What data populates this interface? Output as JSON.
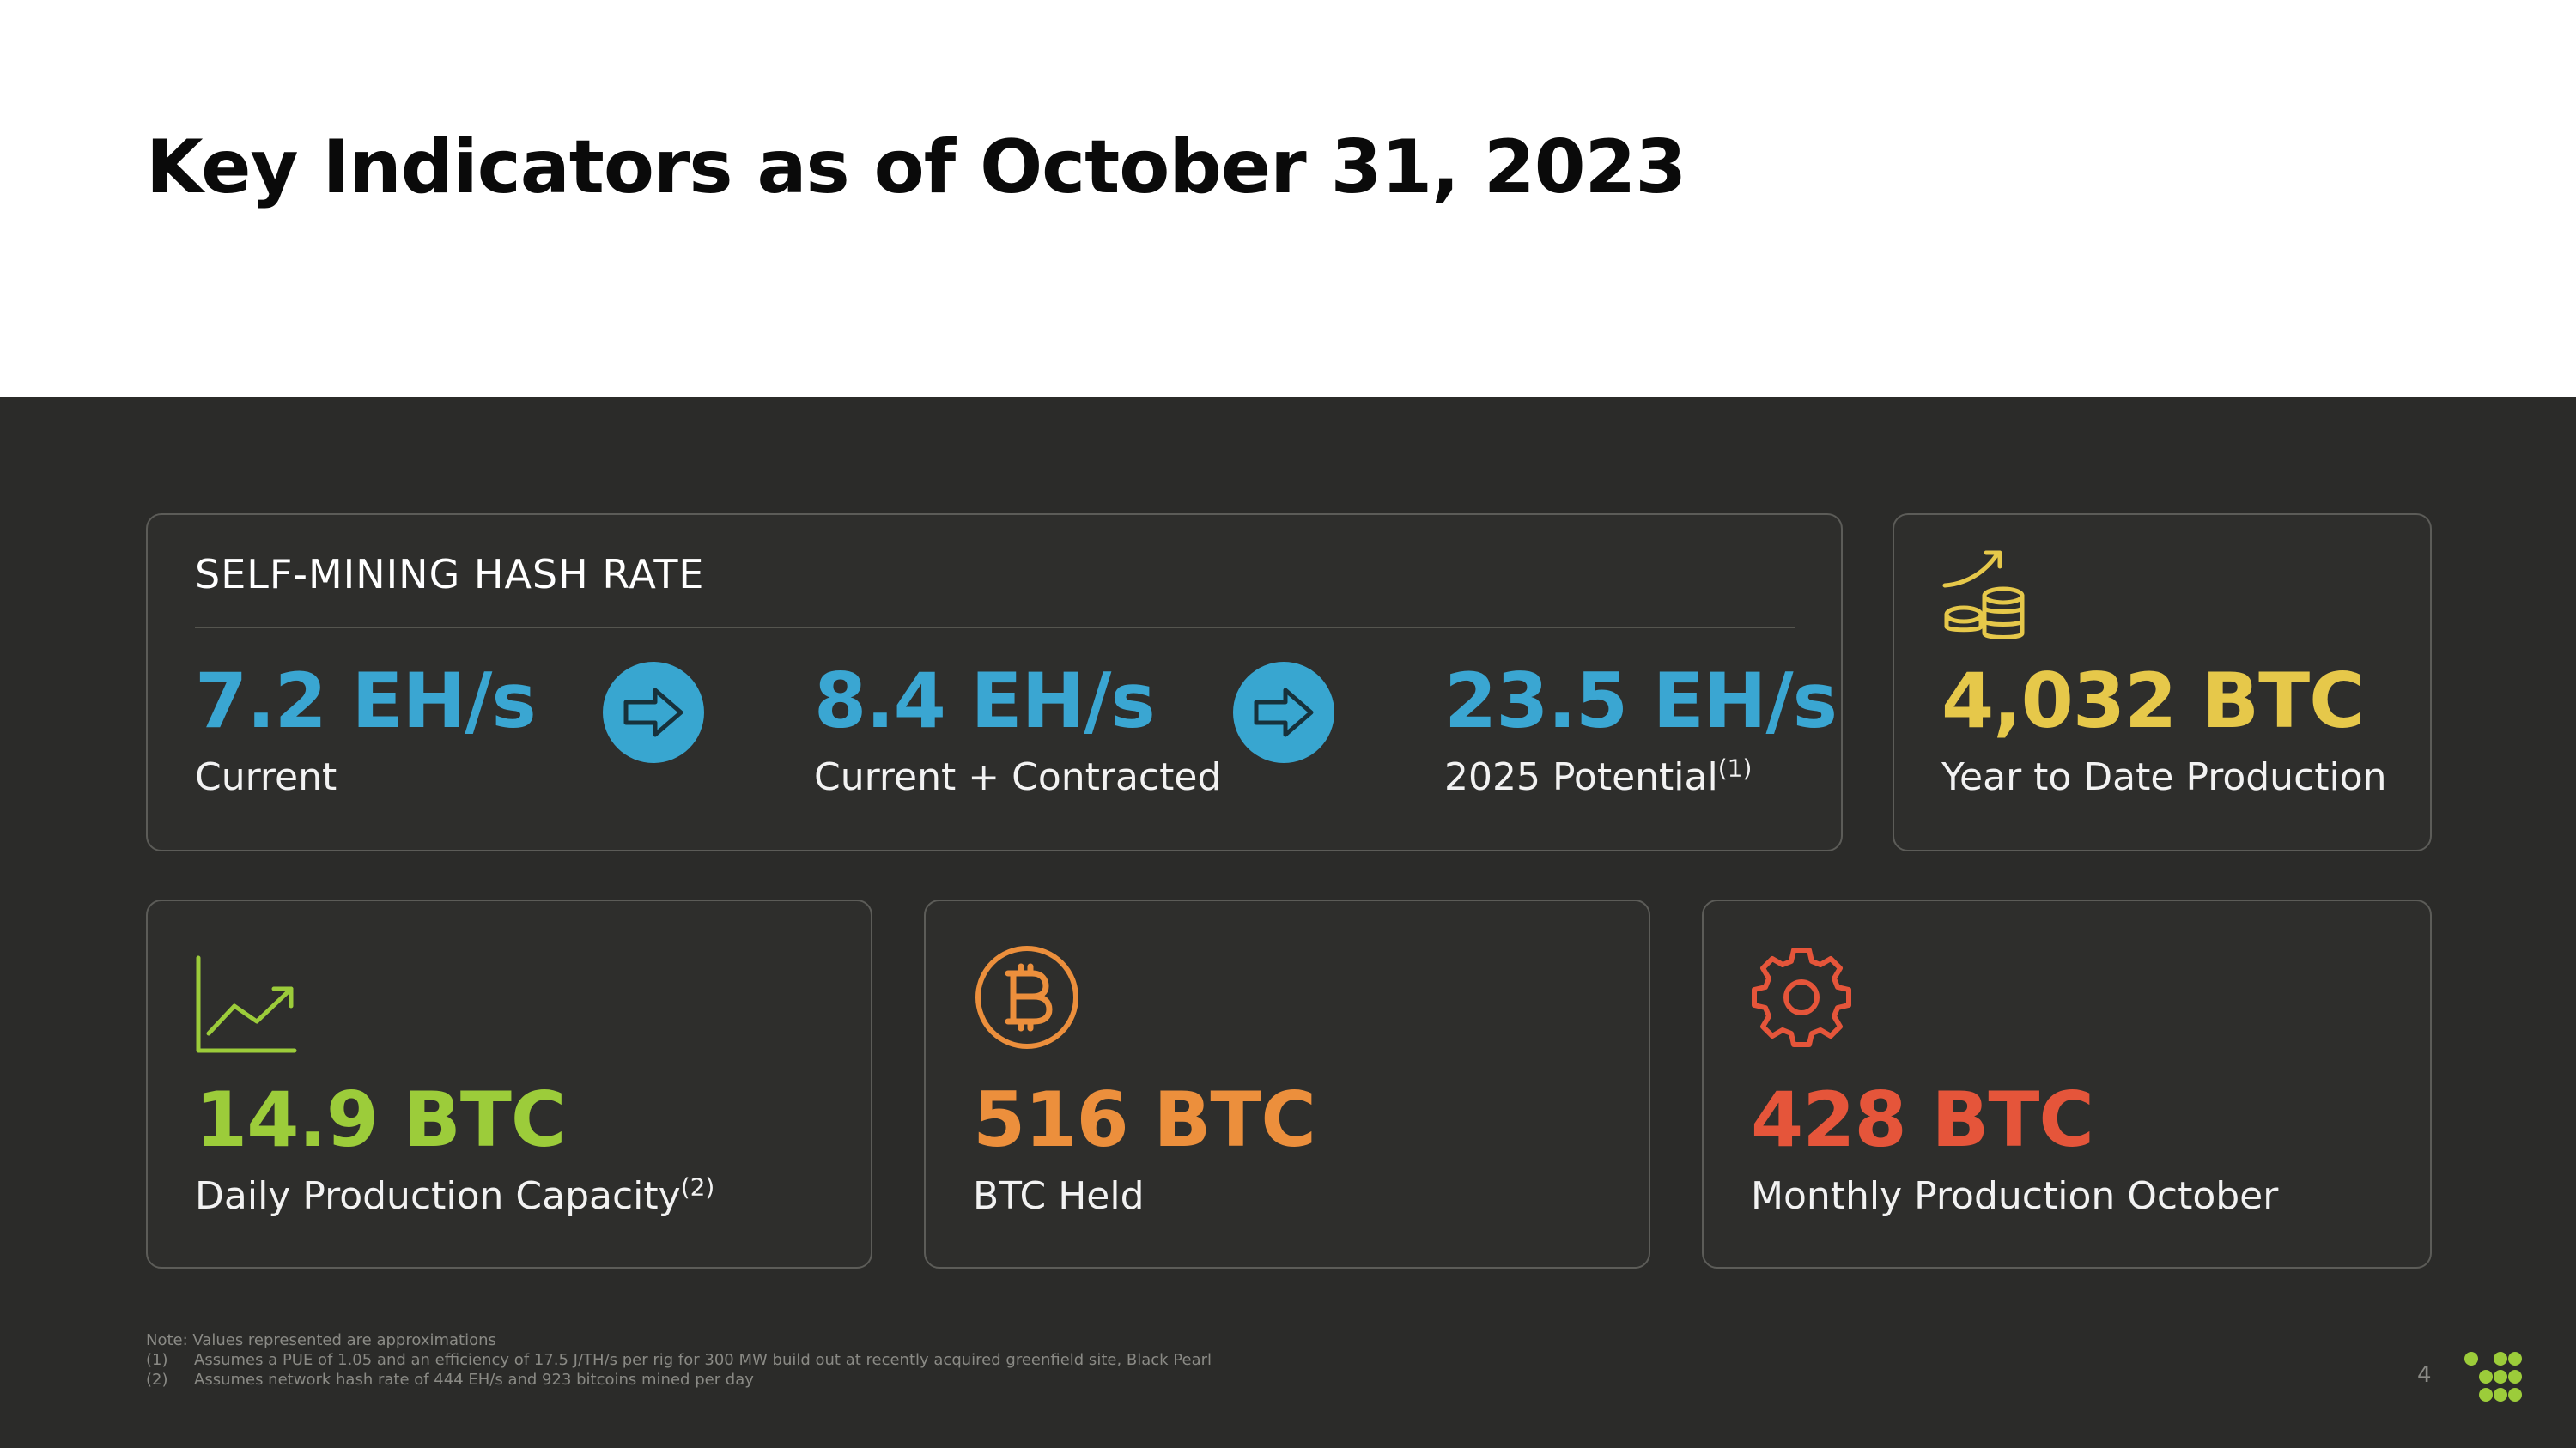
{
  "title": "Key Indicators as of October 31, 2023",
  "hash_rate": {
    "label": "SELF-MINING HASH RATE",
    "items": [
      {
        "value": "7.2 EH/s",
        "caption": "Current",
        "sup": ""
      },
      {
        "value": "8.4 EH/s",
        "caption": "Current + Contracted",
        "sup": ""
      },
      {
        "value": "23.5 EH/s",
        "caption": "2025 Potential",
        "sup": "(1)"
      }
    ],
    "color": "#3aa6d2"
  },
  "ytd": {
    "value": "4,032 BTC",
    "caption": "Year to Date Production",
    "color": "#e6c84a",
    "icon": "coins-growth-icon"
  },
  "daily": {
    "value": "14.9 BTC",
    "caption": "Daily Production Capacity",
    "sup": "(2)",
    "color": "#9ccc3a",
    "icon": "line-chart-icon"
  },
  "held": {
    "value": "516 BTC",
    "caption": "BTC Held",
    "color": "#ec8f3c",
    "icon": "bitcoin-icon"
  },
  "monthly": {
    "value": "428 BTC",
    "caption": "Monthly Production October",
    "color": "#e5553a",
    "icon": "gear-icon"
  },
  "notes": {
    "heading": "Note: Values represented are approximations",
    "items": [
      {
        "num": "(1)",
        "text": "Assumes a PUE of 1.05 and an efficiency of 17.5 J/TH/s per rig for 300 MW build out at recently acquired greenfield site, Black Pearl"
      },
      {
        "num": "(2)",
        "text": "Assumes network hash rate of 444 EH/s and 923 bitcoins mined per day"
      }
    ]
  },
  "page_number": "4",
  "logo_color": "#9ccc3a"
}
